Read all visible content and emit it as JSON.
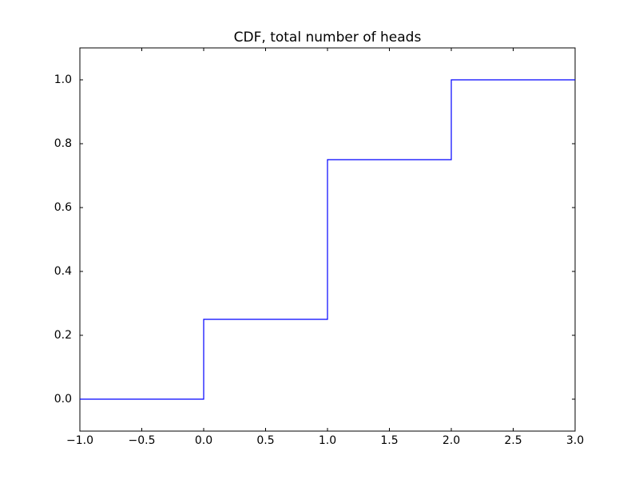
{
  "chart_data": {
    "type": "line",
    "title": "CDF, total number of heads",
    "x": [
      -1,
      0,
      0,
      1,
      1,
      2,
      2,
      3
    ],
    "values": [
      0,
      0,
      0.25,
      0.25,
      0.75,
      0.75,
      1,
      1
    ],
    "color": "#0000ff",
    "xlim": [
      -1,
      3
    ],
    "ylim": [
      -0.1,
      1.1
    ],
    "xticks": [
      {
        "value": -1,
        "label": "−1.0"
      },
      {
        "value": -0.5,
        "label": "−0.5"
      },
      {
        "value": 0,
        "label": "0.0"
      },
      0.5,
      {
        "value": 1,
        "label": "1.0"
      },
      1.5,
      {
        "value": 2,
        "label": "2.0"
      },
      2.5,
      {
        "value": 3,
        "label": "3.0"
      }
    ],
    "yticks": [
      {
        "value": 0,
        "label": "0.0"
      },
      0.2,
      0.4,
      0.6,
      0.8,
      {
        "value": 1,
        "label": "1.0"
      }
    ],
    "grid": false
  }
}
